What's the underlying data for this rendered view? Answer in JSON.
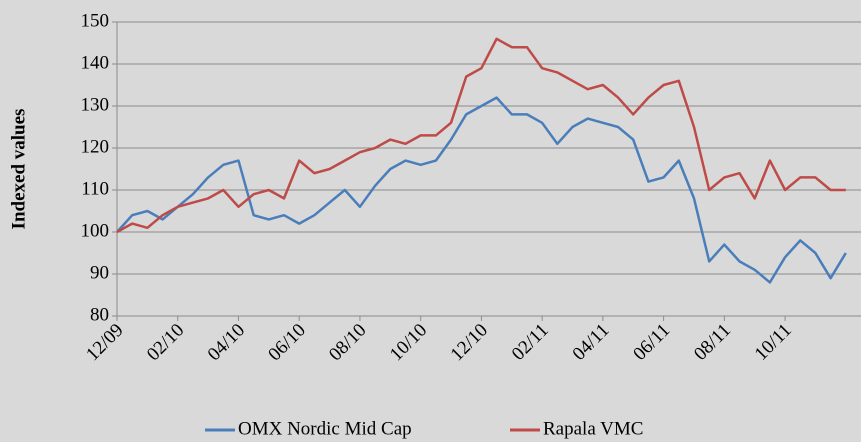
{
  "chart_data": {
    "type": "line",
    "ylabel": "Indexed values",
    "x": [
      0,
      0.5,
      1,
      1.5,
      2,
      2.5,
      3,
      3.5,
      4,
      4.5,
      5,
      5.5,
      6,
      6.5,
      7,
      7.5,
      8,
      8.5,
      9,
      9.5,
      10,
      10.5,
      11,
      11.5,
      12,
      12.5,
      13,
      13.5,
      14,
      14.5,
      15,
      15.5,
      16,
      16.5,
      17,
      17.5,
      18,
      18.5,
      19,
      19.5,
      20,
      20.5,
      21,
      21.5,
      22,
      22.5,
      23,
      23.5,
      24
    ],
    "series": [
      {
        "name": "OMX Nordic Mid Cap",
        "color": "#4a7ebb",
        "values": [
          100,
          104,
          105,
          103,
          106,
          109,
          113,
          116,
          117,
          104,
          103,
          104,
          102,
          104,
          107,
          110,
          106,
          111,
          115,
          117,
          116,
          117,
          122,
          128,
          130,
          132,
          128,
          128,
          126,
          121,
          125,
          127,
          126,
          125,
          122,
          112,
          113,
          117,
          108,
          93,
          97,
          93,
          91,
          88,
          94,
          98,
          95,
          89,
          95
        ]
      },
      {
        "name": "Rapala VMC",
        "color": "#be4b48",
        "values": [
          100,
          102,
          101,
          104,
          106,
          107,
          108,
          110,
          106,
          109,
          110,
          108,
          117,
          114,
          115,
          117,
          119,
          120,
          122,
          121,
          123,
          123,
          126,
          137,
          139,
          146,
          144,
          144,
          139,
          138,
          136,
          134,
          135,
          132,
          128,
          132,
          135,
          136,
          125,
          110,
          113,
          114,
          108,
          117,
          110,
          113,
          113,
          110,
          110
        ]
      }
    ],
    "xlim": [
      0,
      24.5
    ],
    "xticks": [
      {
        "value": 0,
        "label": "12/09"
      },
      {
        "value": 2,
        "label": "02/10"
      },
      {
        "value": 4,
        "label": "04/10"
      },
      {
        "value": 6,
        "label": "06/10"
      },
      {
        "value": 8,
        "label": "08/10"
      },
      {
        "value": 10,
        "label": "10/10"
      },
      {
        "value": 12,
        "label": "12/10"
      },
      {
        "value": 14,
        "label": "02/11"
      },
      {
        "value": 16,
        "label": "04/11"
      },
      {
        "value": 18,
        "label": "06/11"
      },
      {
        "value": 20,
        "label": "08/11"
      },
      {
        "value": 22,
        "label": "10/11"
      }
    ],
    "ylim": [
      80,
      150
    ],
    "yticks": [
      80,
      90,
      100,
      110,
      120,
      130,
      140,
      150
    ],
    "grid": true,
    "legend": "bottom"
  }
}
